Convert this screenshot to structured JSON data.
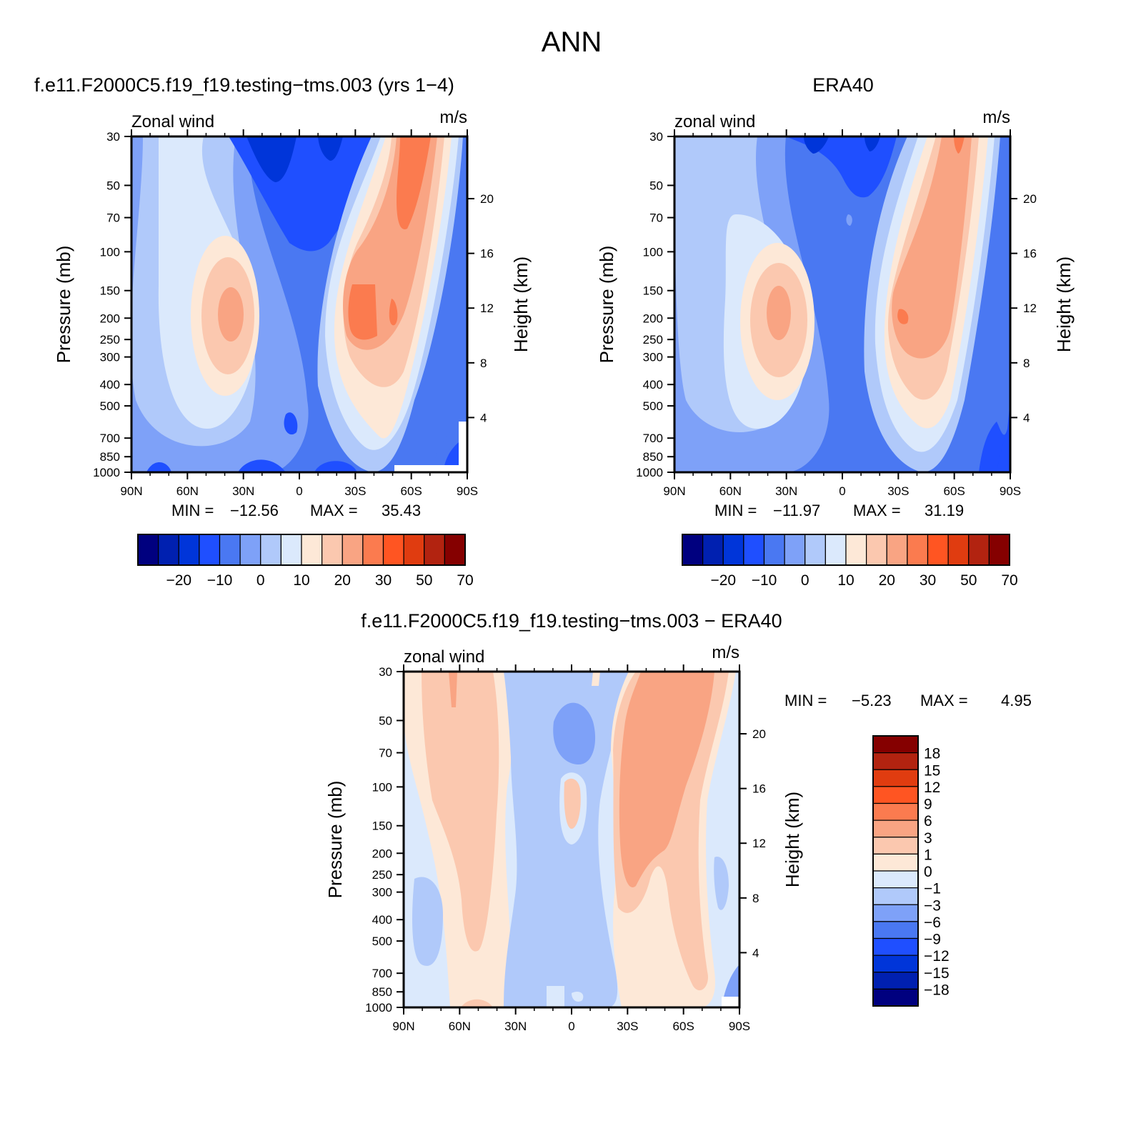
{
  "page": {
    "title": "ANN"
  },
  "chart_data": [
    {
      "type": "heatmap",
      "title": "f.e11.F2000C5.f19_f19.testing−tms.003 (yrs 1−4)",
      "left_string": "Zonal wind",
      "right_string": "m/s",
      "xlabel": "",
      "ylabel": "Pressure (mb)",
      "ylabel_right": "Height (km)",
      "x_ticks": [
        "90N",
        "60N",
        "30N",
        "0",
        "30S",
        "60S",
        "90S"
      ],
      "y_ticks": [
        "30",
        "50",
        "70",
        "100",
        "150",
        "200",
        "250",
        "300",
        "400",
        "500",
        "700",
        "850",
        "1000"
      ],
      "height_ticks": [
        "20",
        "16",
        "12",
        "8",
        "4"
      ],
      "min_label": "MIN =",
      "min_value": "−12.56",
      "max_label": "MAX =",
      "max_value": "35.43",
      "features": [
        {
          "lat": 30,
          "p": 200,
          "value": 27
        },
        {
          "lat": -30,
          "p": 200,
          "value": 35.43
        },
        {
          "lat": -55,
          "p": 40,
          "value": 30
        },
        {
          "lat": 10,
          "p": 40,
          "value": -12.56
        },
        {
          "lat": 0,
          "p": 200,
          "value": -5
        },
        {
          "lat": 0,
          "p": 700,
          "value": -9
        }
      ]
    },
    {
      "type": "heatmap",
      "title": "ERA40",
      "left_string": "zonal wind",
      "right_string": "m/s",
      "xlabel": "",
      "ylabel": "Pressure (mb)",
      "ylabel_right": "Height (km)",
      "x_ticks": [
        "90N",
        "60N",
        "30N",
        "0",
        "30S",
        "60S",
        "90S"
      ],
      "y_ticks": [
        "30",
        "50",
        "70",
        "100",
        "150",
        "200",
        "250",
        "300",
        "400",
        "500",
        "700",
        "850",
        "1000"
      ],
      "height_ticks": [
        "20",
        "16",
        "12",
        "8",
        "4"
      ],
      "min_label": "MIN =",
      "min_value": "−11.97",
      "max_label": "MAX =",
      "max_value": "31.19",
      "features": [
        {
          "lat": 33,
          "p": 200,
          "value": 26
        },
        {
          "lat": -32,
          "p": 200,
          "value": 31.19
        },
        {
          "lat": 10,
          "p": 40,
          "value": -11.97
        }
      ]
    },
    {
      "type": "heatmap",
      "title": "f.e11.F2000C5.f19_f19.testing−tms.003 − ERA40",
      "left_string": "zonal wind",
      "right_string": "m/s",
      "xlabel": "",
      "ylabel": "Pressure (mb)",
      "ylabel_right": "Height (km)",
      "x_ticks": [
        "90N",
        "60N",
        "30N",
        "0",
        "30S",
        "60S",
        "90S"
      ],
      "y_ticks": [
        "30",
        "50",
        "70",
        "100",
        "150",
        "200",
        "250",
        "300",
        "400",
        "500",
        "700",
        "850",
        "1000"
      ],
      "height_ticks": [
        "20",
        "16",
        "12",
        "8",
        "4"
      ],
      "min_label": "MIN =",
      "min_value": "−5.23",
      "max_label": "MAX =",
      "max_value": "4.95",
      "features": [
        {
          "lat": -40,
          "p": 100,
          "value": 4.95
        },
        {
          "lat": 10,
          "p": 60,
          "value": -5.23
        },
        {
          "lat": 3,
          "p": 120,
          "value": 1
        }
      ]
    }
  ],
  "colorbars": {
    "top": {
      "colors": [
        "#00007f",
        "#0020b0",
        "#0035d9",
        "#1f4fff",
        "#4a78f2",
        "#7ea1f8",
        "#b0c9fa",
        "#dbe9fc",
        "#fde8d7",
        "#fbc8af",
        "#f9a483",
        "#fb7b4f",
        "#ff5522",
        "#e03c10",
        "#b22310",
        "#850000"
      ],
      "labels": [
        "−20",
        "−10",
        "0",
        "10",
        "20",
        "30",
        "50",
        "70"
      ]
    },
    "diff": {
      "colors": [
        "#00007f",
        "#0020b0",
        "#0035d9",
        "#1f4fff",
        "#4a78f2",
        "#7ea1f8",
        "#b0c9fa",
        "#dbe9fc",
        "#fde8d7",
        "#fbc8af",
        "#f9a483",
        "#fb7b4f",
        "#ff5522",
        "#e03c10",
        "#b22310",
        "#850000"
      ],
      "labels": [
        "18",
        "15",
        "12",
        "9",
        "6",
        "3",
        "1",
        "0",
        "−1",
        "−3",
        "−6",
        "−9",
        "−12",
        "−15",
        "−18"
      ]
    }
  }
}
